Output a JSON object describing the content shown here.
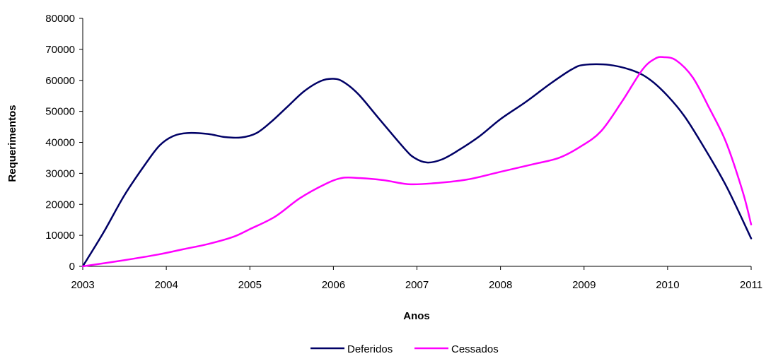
{
  "chart_data": {
    "type": "line",
    "title": "",
    "xlabel": "Anos",
    "ylabel": "Requerimentos",
    "x_ticks": [
      "2003",
      "2004",
      "2005",
      "2006",
      "2007",
      "2008",
      "2009",
      "2010",
      "2011"
    ],
    "y_ticks": [
      "0",
      "10000",
      "20000",
      "30000",
      "40000",
      "50000",
      "60000",
      "70000",
      "80000"
    ],
    "xlim": [
      2003,
      2011
    ],
    "ylim": [
      0,
      80000
    ],
    "grid": false,
    "legend_position": "bottom",
    "series": [
      {
        "name": "Deferidos",
        "color": "#000066",
        "points": [
          [
            2003.0,
            0
          ],
          [
            2003.25,
            11000
          ],
          [
            2003.5,
            23000
          ],
          [
            2003.75,
            33000
          ],
          [
            2003.92,
            39000
          ],
          [
            2004.08,
            42000
          ],
          [
            2004.25,
            43000
          ],
          [
            2004.5,
            42700
          ],
          [
            2004.7,
            41700
          ],
          [
            2004.9,
            41600
          ],
          [
            2005.08,
            43000
          ],
          [
            2005.25,
            46500
          ],
          [
            2005.45,
            51500
          ],
          [
            2005.65,
            56500
          ],
          [
            2005.85,
            59800
          ],
          [
            2006.0,
            60500
          ],
          [
            2006.12,
            59500
          ],
          [
            2006.3,
            55500
          ],
          [
            2006.55,
            47500
          ],
          [
            2006.85,
            38000
          ],
          [
            2006.97,
            35000
          ],
          [
            2007.12,
            33500
          ],
          [
            2007.3,
            34500
          ],
          [
            2007.5,
            37500
          ],
          [
            2007.75,
            42000
          ],
          [
            2008.0,
            47500
          ],
          [
            2008.3,
            53000
          ],
          [
            2008.6,
            59000
          ],
          [
            2008.85,
            63500
          ],
          [
            2009.0,
            65000
          ],
          [
            2009.3,
            65000
          ],
          [
            2009.6,
            63000
          ],
          [
            2009.8,
            60000
          ],
          [
            2010.0,
            55000
          ],
          [
            2010.2,
            48500
          ],
          [
            2010.4,
            40000
          ],
          [
            2010.7,
            26000
          ],
          [
            2011.0,
            9000
          ]
        ]
      },
      {
        "name": "Cessados",
        "color": "#ff00ff",
        "points": [
          [
            2003.0,
            0
          ],
          [
            2003.5,
            2000
          ],
          [
            2003.9,
            3800
          ],
          [
            2004.2,
            5500
          ],
          [
            2004.5,
            7200
          ],
          [
            2004.8,
            9500
          ],
          [
            2005.0,
            12000
          ],
          [
            2005.3,
            16000
          ],
          [
            2005.6,
            22000
          ],
          [
            2005.9,
            26500
          ],
          [
            2006.1,
            28500
          ],
          [
            2006.3,
            28500
          ],
          [
            2006.6,
            27800
          ],
          [
            2006.9,
            26500
          ],
          [
            2007.2,
            26800
          ],
          [
            2007.6,
            28000
          ],
          [
            2008.0,
            30500
          ],
          [
            2008.4,
            33000
          ],
          [
            2008.7,
            35000
          ],
          [
            2008.95,
            38500
          ],
          [
            2009.2,
            43500
          ],
          [
            2009.45,
            53000
          ],
          [
            2009.7,
            63500
          ],
          [
            2009.85,
            67000
          ],
          [
            2009.95,
            67500
          ],
          [
            2010.1,
            66500
          ],
          [
            2010.3,
            61000
          ],
          [
            2010.5,
            51000
          ],
          [
            2010.7,
            40000
          ],
          [
            2010.9,
            24000
          ],
          [
            2011.0,
            13500
          ]
        ]
      }
    ]
  }
}
